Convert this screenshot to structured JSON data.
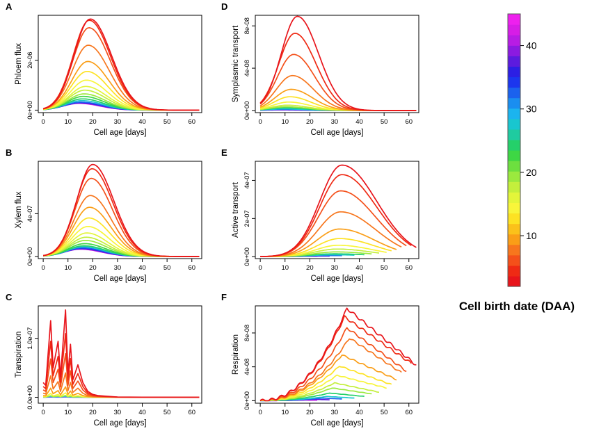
{
  "chart_data": [
    {
      "panel": "A",
      "type": "line",
      "xlabel": "Cell age [days]",
      "ylabel": "Phloem flux",
      "xticks": [
        0,
        10,
        20,
        30,
        40,
        50,
        60
      ],
      "yticks": [
        0,
        2e-06
      ],
      "ytick_labels": [
        "0e+00",
        "2e-06"
      ],
      "xlim": [
        -2,
        64
      ],
      "ylim": [
        -1e-07,
        3.8e-06
      ],
      "shape": "gauss",
      "series": [
        {
          "birth_daa": 2,
          "peak": 3.65e-06,
          "peak_age": 19
        },
        {
          "birth_daa": 4,
          "peak": 3.6e-06,
          "peak_age": 18.6
        },
        {
          "birth_daa": 6,
          "peak": 3.3e-06,
          "peak_age": 18.5
        },
        {
          "birth_daa": 8,
          "peak": 2.6e-06,
          "peak_age": 18.2
        },
        {
          "birth_daa": 10,
          "peak": 1.95e-06,
          "peak_age": 18
        },
        {
          "birth_daa": 12,
          "peak": 1.55e-06,
          "peak_age": 17.7
        },
        {
          "birth_daa": 14,
          "peak": 1.2e-06,
          "peak_age": 17.4
        },
        {
          "birth_daa": 16,
          "peak": 9.5e-07,
          "peak_age": 17.1
        },
        {
          "birth_daa": 18,
          "peak": 8e-07,
          "peak_age": 16.8
        },
        {
          "birth_daa": 20,
          "peak": 6.5e-07,
          "peak_age": 16.5
        },
        {
          "birth_daa": 22,
          "peak": 5.5e-07,
          "peak_age": 16.2
        },
        {
          "birth_daa": 25,
          "peak": 4.5e-07,
          "peak_age": 15.9
        },
        {
          "birth_daa": 28,
          "peak": 3.8e-07,
          "peak_age": 15.6
        },
        {
          "birth_daa": 32,
          "peak": 3.2e-07,
          "peak_age": 15.3
        },
        {
          "birth_daa": 36,
          "peak": 3e-07,
          "peak_age": 15
        },
        {
          "birth_daa": 40,
          "peak": 2.8e-07,
          "peak_age": 14.7
        },
        {
          "birth_daa": 44,
          "peak": 2.7e-07,
          "peak_age": 14.4
        }
      ]
    },
    {
      "panel": "D",
      "type": "line",
      "xlabel": "Cell age [days]",
      "ylabel": "Symplasmic transport",
      "xticks": [
        0,
        10,
        20,
        30,
        40,
        50,
        60
      ],
      "yticks": [
        0,
        4e-08,
        8e-08
      ],
      "ytick_labels": [
        "0e+00",
        "4e-08",
        "8e-08"
      ],
      "xlim": [
        -2,
        64
      ],
      "ylim": [
        -2e-09,
        9e-08
      ],
      "shape": "gauss",
      "series": [
        {
          "birth_daa": 2,
          "peak": 8.9e-08,
          "peak_age": 15
        },
        {
          "birth_daa": 4,
          "peak": 7.3e-08,
          "peak_age": 14
        },
        {
          "birth_daa": 6,
          "peak": 5.3e-08,
          "peak_age": 13.5
        },
        {
          "birth_daa": 8,
          "peak": 3.3e-08,
          "peak_age": 13
        },
        {
          "birth_daa": 10,
          "peak": 2e-08,
          "peak_age": 12.5
        },
        {
          "birth_daa": 12,
          "peak": 1.3e-08,
          "peak_age": 12
        },
        {
          "birth_daa": 14,
          "peak": 8e-09,
          "peak_age": 11.5
        },
        {
          "birth_daa": 17,
          "peak": 5e-09,
          "peak_age": 11
        },
        {
          "birth_daa": 20,
          "peak": 3.5e-09,
          "peak_age": 10.5
        },
        {
          "birth_daa": 24,
          "peak": 2.5e-09,
          "peak_age": 10
        },
        {
          "birth_daa": 28,
          "peak": 1.5e-09,
          "peak_age": 9.5
        },
        {
          "birth_daa": 33,
          "peak": 1e-09,
          "peak_age": 9
        },
        {
          "birth_daa": 38,
          "peak": 7e-10,
          "peak_age": 8.5
        },
        {
          "birth_daa": 43,
          "peak": 5e-10,
          "peak_age": 8
        }
      ]
    },
    {
      "panel": "B",
      "type": "line",
      "xlabel": "Cell age [days]",
      "ylabel": "Xylem flux",
      "xticks": [
        0,
        10,
        20,
        30,
        40,
        50,
        60
      ],
      "yticks": [
        0,
        4e-07
      ],
      "ytick_labels": [
        "0e+00",
        "4e-07"
      ],
      "xlim": [
        -2,
        64
      ],
      "ylim": [
        -2e-08,
        8.9e-07
      ],
      "shape": "gauss",
      "series": [
        {
          "birth_daa": 2,
          "peak": 8.6e-07,
          "peak_age": 20
        },
        {
          "birth_daa": 4,
          "peak": 8.2e-07,
          "peak_age": 19.7
        },
        {
          "birth_daa": 6,
          "peak": 7.3e-07,
          "peak_age": 19.4
        },
        {
          "birth_daa": 8,
          "peak": 5.7e-07,
          "peak_age": 19
        },
        {
          "birth_daa": 10,
          "peak": 4.6e-07,
          "peak_age": 18.7
        },
        {
          "birth_daa": 12,
          "peak": 3.6e-07,
          "peak_age": 18.4
        },
        {
          "birth_daa": 14,
          "peak": 2.8e-07,
          "peak_age": 18
        },
        {
          "birth_daa": 16,
          "peak": 2.2e-07,
          "peak_age": 17.6
        },
        {
          "birth_daa": 18,
          "peak": 1.8e-07,
          "peak_age": 17.3
        },
        {
          "birth_daa": 20,
          "peak": 1.5e-07,
          "peak_age": 17
        },
        {
          "birth_daa": 22,
          "peak": 1.2e-07,
          "peak_age": 16.7
        },
        {
          "birth_daa": 25,
          "peak": 1e-07,
          "peak_age": 16.4
        },
        {
          "birth_daa": 28,
          "peak": 9e-08,
          "peak_age": 16.1
        },
        {
          "birth_daa": 32,
          "peak": 8e-08,
          "peak_age": 15.8
        },
        {
          "birth_daa": 36,
          "peak": 7.5e-08,
          "peak_age": 15.5
        },
        {
          "birth_daa": 40,
          "peak": 7e-08,
          "peak_age": 15.2
        },
        {
          "birth_daa": 44,
          "peak": 6.8e-08,
          "peak_age": 15
        }
      ]
    },
    {
      "panel": "E",
      "type": "line",
      "xlabel": "Cell age [days]",
      "ylabel": "Active transport",
      "xticks": [
        0,
        10,
        20,
        30,
        40,
        50,
        60
      ],
      "yticks": [
        0,
        2e-07,
        4e-07
      ],
      "ytick_labels": [
        "0e+00",
        "2e-07",
        "4e-07"
      ],
      "xlim": [
        -2,
        64
      ],
      "ylim": [
        -1e-08,
        5e-07
      ],
      "shape": "skew",
      "series": [
        {
          "birth_daa": 2,
          "peak": 4.8e-07,
          "peak_age": 33,
          "end_age": 63
        },
        {
          "birth_daa": 4,
          "peak": 4.3e-07,
          "peak_age": 33,
          "end_age": 61
        },
        {
          "birth_daa": 6,
          "peak": 3.45e-07,
          "peak_age": 32.5,
          "end_age": 59
        },
        {
          "birth_daa": 8,
          "peak": 2.35e-07,
          "peak_age": 32.5,
          "end_age": 57
        },
        {
          "birth_daa": 10,
          "peak": 1.45e-07,
          "peak_age": 32,
          "end_age": 55
        },
        {
          "birth_daa": 12,
          "peak": 9.5e-08,
          "peak_age": 32,
          "end_age": 53
        },
        {
          "birth_daa": 14,
          "peak": 6e-08,
          "peak_age": 31.5,
          "end_age": 51
        },
        {
          "birth_daa": 17,
          "peak": 4e-08,
          "peak_age": 31,
          "end_age": 48
        },
        {
          "birth_daa": 20,
          "peak": 2.5e-08,
          "peak_age": 30.5,
          "end_age": 45
        },
        {
          "birth_daa": 24,
          "peak": 1.5e-08,
          "peak_age": 30,
          "end_age": 42
        },
        {
          "birth_daa": 28,
          "peak": 1e-08,
          "peak_age": 29,
          "end_age": 38
        },
        {
          "birth_daa": 33,
          "peak": 6e-09,
          "peak_age": 27,
          "end_age": 33
        },
        {
          "birth_daa": 38,
          "peak": 3e-09,
          "peak_age": 25,
          "end_age": 28
        },
        {
          "birth_daa": 43,
          "peak": 2e-09,
          "peak_age": 21,
          "end_age": 23
        }
      ]
    },
    {
      "panel": "C",
      "type": "line",
      "xlabel": "Cell age [days]",
      "ylabel": "Transpiration",
      "xticks": [
        0,
        10,
        20,
        30,
        40,
        50,
        60
      ],
      "yticks": [
        0,
        1e-07
      ],
      "ytick_labels": [
        "0.0e+00",
        "1.0e-07"
      ],
      "xlim": [
        -2,
        64
      ],
      "ylim": [
        -1e-08,
        1.55e-07
      ],
      "shape": "spiky",
      "series": [
        {
          "birth_daa": 2,
          "scale": 1.0
        },
        {
          "birth_daa": 4,
          "scale": 0.73
        },
        {
          "birth_daa": 6,
          "scale": 0.5
        },
        {
          "birth_daa": 8,
          "scale": 0.28
        },
        {
          "birth_daa": 10,
          "scale": 0.12
        },
        {
          "birth_daa": 14,
          "scale": 0.05
        },
        {
          "birth_daa": 20,
          "scale": 0.02
        },
        {
          "birth_daa": 30,
          "scale": 0.01
        },
        {
          "birth_daa": 40,
          "scale": 0.005
        }
      ],
      "spiky_points": [
        [
          0,
          2.5e-08
        ],
        [
          1,
          2e-08
        ],
        [
          3,
          1.3e-07
        ],
        [
          4,
          5e-08
        ],
        [
          6,
          9.5e-08
        ],
        [
          7,
          3.5e-08
        ],
        [
          9,
          1.48e-07
        ],
        [
          10,
          4e-08
        ],
        [
          11,
          9e-08
        ],
        [
          12,
          3e-08
        ],
        [
          14,
          5.5e-08
        ],
        [
          16,
          2.5e-08
        ],
        [
          18,
          1e-08
        ],
        [
          20,
          5e-09
        ],
        [
          22,
          3e-09
        ],
        [
          25,
          2e-09
        ],
        [
          30,
          5e-10
        ],
        [
          40,
          2e-10
        ],
        [
          63,
          0.0
        ]
      ]
    },
    {
      "panel": "F",
      "type": "line",
      "xlabel": "Cell age [days]",
      "ylabel": "Respiration",
      "xticks": [
        0,
        10,
        20,
        30,
        40,
        50,
        60
      ],
      "yticks": [
        0,
        4e-08,
        8e-08
      ],
      "ytick_labels": [
        "0e+00",
        "4e-08",
        "8e-08"
      ],
      "xlim": [
        -2,
        64
      ],
      "ylim": [
        -3e-09,
        1.12e-07
      ],
      "shape": "resp",
      "series": [
        {
          "birth_daa": 2,
          "peak": 1.09e-07,
          "peak_age": 35,
          "end_age": 63,
          "end_val": 4.2e-08
        },
        {
          "birth_daa": 4,
          "peak": 9.9e-08,
          "peak_age": 34,
          "end_age": 61,
          "end_val": 4.4e-08
        },
        {
          "birth_daa": 6,
          "peak": 8.6e-08,
          "peak_age": 35,
          "end_age": 59,
          "end_val": 3.5e-08
        },
        {
          "birth_daa": 8,
          "peak": 7.4e-08,
          "peak_age": 36,
          "end_age": 57,
          "end_val": 3.3e-08
        },
        {
          "birth_daa": 10,
          "peak": 5.4e-08,
          "peak_age": 33,
          "end_age": 55,
          "end_val": 2.5e-08
        },
        {
          "birth_daa": 12,
          "peak": 4.1e-08,
          "peak_age": 32,
          "end_age": 53,
          "end_val": 1.9e-08
        },
        {
          "birth_daa": 14,
          "peak": 3e-08,
          "peak_age": 31,
          "end_age": 51,
          "end_val": 1.5e-08
        },
        {
          "birth_daa": 17,
          "peak": 2.1e-08,
          "peak_age": 30,
          "end_age": 48,
          "end_val": 1e-08
        },
        {
          "birth_daa": 20,
          "peak": 1.5e-08,
          "peak_age": 29,
          "end_age": 45,
          "end_val": 8e-09
        },
        {
          "birth_daa": 24,
          "peak": 9e-09,
          "peak_age": 28,
          "end_age": 42,
          "end_val": 5e-09
        },
        {
          "birth_daa": 28,
          "peak": 5e-09,
          "peak_age": 27,
          "end_age": 38,
          "end_val": 3e-09
        },
        {
          "birth_daa": 33,
          "peak": 3e-09,
          "peak_age": 25,
          "end_age": 33,
          "end_val": 2e-09
        },
        {
          "birth_daa": 38,
          "peak": 1.5e-09,
          "peak_age": 22,
          "end_age": 28,
          "end_val": 1e-09
        },
        {
          "birth_daa": 43,
          "peak": 7e-10,
          "peak_age": 18,
          "end_age": 23,
          "end_val": 5e-10
        }
      ]
    }
  ],
  "colorbar": {
    "title": "Cell birth date (DAA)",
    "range": [
      2,
      45
    ],
    "ticks": [
      10,
      20,
      30,
      40
    ],
    "tick_labels": [
      "10",
      "20",
      "30",
      "40"
    ],
    "colors": [
      "#e8141b",
      "#ef2a14",
      "#f4501a",
      "#f7761d",
      "#fa9e17",
      "#fbc11a",
      "#fde223",
      "#f8f53a",
      "#e3f53a",
      "#c4ef3c",
      "#9be93e",
      "#6ddf3f",
      "#3ed744",
      "#25d06a",
      "#1fcba0",
      "#19c6cf",
      "#1bb4ef",
      "#1a8ef0",
      "#1b62ee",
      "#1c36ee",
      "#2c1fe4",
      "#5c1bde",
      "#8c1ae0",
      "#b81ce4",
      "#d71de6",
      "#ee20ee"
    ]
  }
}
